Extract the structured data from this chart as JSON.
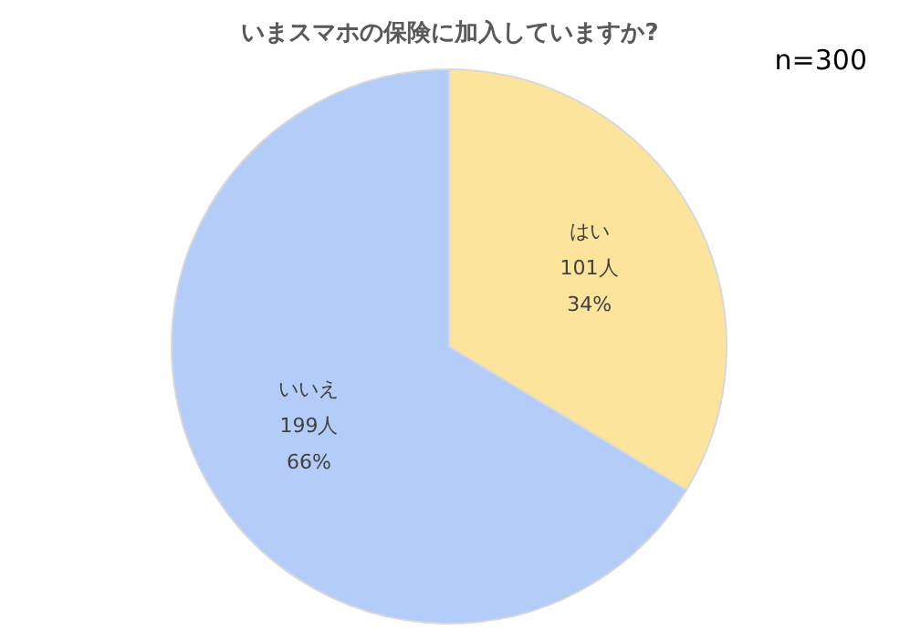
{
  "chart_data": {
    "type": "pie",
    "title": "いまスマホの保険に加入していますか?",
    "categories": [
      "はい",
      "いいえ"
    ],
    "values": [
      101,
      199
    ],
    "colors": [
      "#fce49c",
      "#b4ccf8"
    ],
    "value_labels": [
      "101人\n34%",
      "199人\n66%"
    ],
    "annotations": [
      "n=300"
    ]
  }
}
